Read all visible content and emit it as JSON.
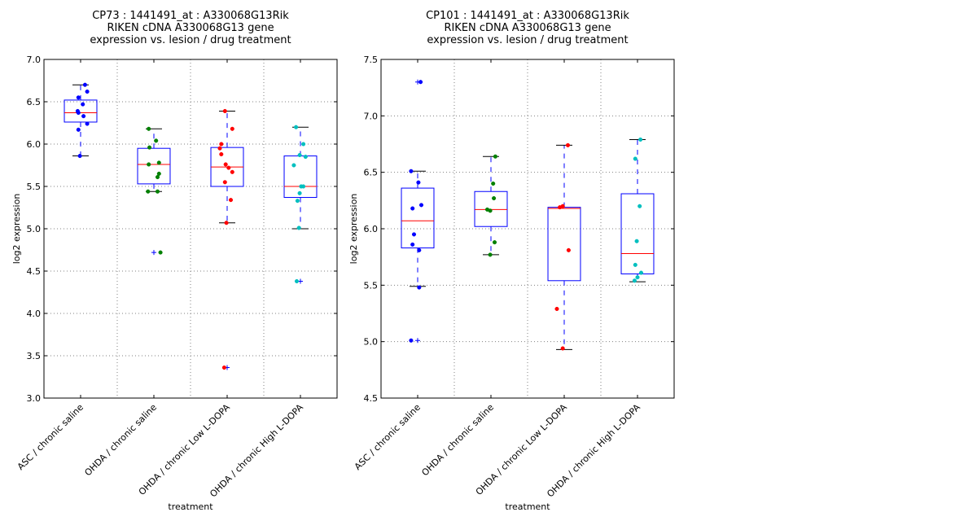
{
  "chart_data": [
    {
      "type": "box",
      "title": [
        "CP73 : 1441491_at : A330068G13Rik",
        "RIKEN cDNA A330068G13 gene",
        "expression vs. lesion / drug treatment"
      ],
      "xlabel": "treatment",
      "ylabel": "log2 expression",
      "ylim": [
        3.0,
        7.0
      ],
      "yticks": [
        "3.0",
        "3.5",
        "4.0",
        "4.5",
        "5.0",
        "5.5",
        "6.0",
        "6.5",
        "7.0"
      ],
      "grid": true,
      "categories": [
        "ASC / chronic saline",
        "OHDA / chronic saline",
        "OHDA / chronic Low L-DOPA",
        "OHDA / chronic High L-DOPA"
      ],
      "colors": [
        "#0000ff",
        "#008000",
        "#ff0000",
        "#00bfbf"
      ],
      "boxes": [
        {
          "q1": 6.26,
          "median": 6.37,
          "q3": 6.52,
          "whisker_low": 5.86,
          "whisker_high": 6.7,
          "outliers": []
        },
        {
          "q1": 5.53,
          "median": 5.76,
          "q3": 5.95,
          "whisker_low": 5.44,
          "whisker_high": 6.18,
          "outliers": [
            4.72
          ]
        },
        {
          "q1": 5.5,
          "median": 5.73,
          "q3": 5.96,
          "whisker_low": 5.07,
          "whisker_high": 6.39,
          "outliers": [
            3.36
          ]
        },
        {
          "q1": 5.37,
          "median": 5.5,
          "q3": 5.86,
          "whisker_low": 5.0,
          "whisker_high": 6.2,
          "outliers": [
            4.38
          ]
        }
      ],
      "points": [
        [
          {
            "v": 6.7,
            "j": 0.06
          },
          {
            "v": 6.62,
            "j": 0.09
          },
          {
            "v": 6.55,
            "j": -0.03
          },
          {
            "v": 6.47,
            "j": 0.03
          },
          {
            "v": 6.39,
            "j": -0.04
          },
          {
            "v": 6.37,
            "j": -0.03
          },
          {
            "v": 6.33,
            "j": 0.04
          },
          {
            "v": 6.24,
            "j": 0.09
          },
          {
            "v": 6.17,
            "j": -0.03
          },
          {
            "v": 5.86,
            "j": -0.01
          }
        ],
        [
          {
            "v": 6.18,
            "j": -0.07
          },
          {
            "v": 6.04,
            "j": 0.03
          },
          {
            "v": 5.96,
            "j": -0.06
          },
          {
            "v": 5.78,
            "j": 0.07
          },
          {
            "v": 5.76,
            "j": -0.07
          },
          {
            "v": 5.65,
            "j": 0.07
          },
          {
            "v": 5.61,
            "j": 0.05
          },
          {
            "v": 5.44,
            "j": -0.08
          },
          {
            "v": 5.44,
            "j": 0.05
          },
          {
            "v": 4.72,
            "j": 0.09
          }
        ],
        [
          {
            "v": 6.39,
            "j": -0.03
          },
          {
            "v": 6.18,
            "j": 0.07
          },
          {
            "v": 6.0,
            "j": -0.08
          },
          {
            "v": 5.95,
            "j": -0.1
          },
          {
            "v": 5.88,
            "j": -0.08
          },
          {
            "v": 5.76,
            "j": -0.02
          },
          {
            "v": 5.72,
            "j": 0.02
          },
          {
            "v": 5.67,
            "j": 0.07
          },
          {
            "v": 5.55,
            "j": -0.03
          },
          {
            "v": 5.34,
            "j": 0.05
          },
          {
            "v": 5.07,
            "j": -0.01
          },
          {
            "v": 3.36,
            "j": -0.04
          }
        ],
        [
          {
            "v": 6.2,
            "j": -0.06
          },
          {
            "v": 6.0,
            "j": 0.04
          },
          {
            "v": 5.87,
            "j": -0.01
          },
          {
            "v": 5.85,
            "j": 0.07
          },
          {
            "v": 5.75,
            "j": -0.09
          },
          {
            "v": 5.5,
            "j": 0.01
          },
          {
            "v": 5.5,
            "j": 0.04
          },
          {
            "v": 5.42,
            "j": -0.01
          },
          {
            "v": 5.33,
            "j": -0.04
          },
          {
            "v": 5.01,
            "j": -0.02
          },
          {
            "v": 4.38,
            "j": -0.05
          }
        ]
      ]
    },
    {
      "type": "box",
      "title": [
        "CP101 : 1441491_at : A330068G13Rik",
        "RIKEN cDNA A330068G13 gene",
        "expression vs. lesion / drug treatment"
      ],
      "xlabel": "treatment",
      "ylabel": "log2 expression",
      "ylim": [
        4.5,
        7.5
      ],
      "yticks": [
        "4.5",
        "5.0",
        "5.5",
        "6.0",
        "6.5",
        "7.0",
        "7.5"
      ],
      "grid": true,
      "categories": [
        "ASC / chronic saline",
        "OHDA / chronic saline",
        "OHDA / chronic Low L-DOPA",
        "OHDA / chronic High L-DOPA"
      ],
      "colors": [
        "#0000ff",
        "#008000",
        "#ff0000",
        "#00bfbf"
      ],
      "boxes": [
        {
          "q1": 5.83,
          "median": 6.07,
          "q3": 6.36,
          "whisker_low": 5.49,
          "whisker_high": 6.51,
          "outliers": [
            7.3,
            5.01
          ]
        },
        {
          "q1": 6.02,
          "median": 6.17,
          "q3": 6.33,
          "whisker_low": 5.77,
          "whisker_high": 6.64,
          "outliers": []
        },
        {
          "q1": 5.54,
          "median": 6.18,
          "q3": 6.19,
          "whisker_low": 4.93,
          "whisker_high": 6.74,
          "outliers": []
        },
        {
          "q1": 5.6,
          "median": 5.78,
          "q3": 6.31,
          "whisker_low": 5.53,
          "whisker_high": 6.79,
          "outliers": []
        }
      ],
      "points": [
        [
          {
            "v": 7.3,
            "j": 0.04
          },
          {
            "v": 6.51,
            "j": -0.09
          },
          {
            "v": 6.41,
            "j": 0.01
          },
          {
            "v": 6.21,
            "j": 0.05
          },
          {
            "v": 6.18,
            "j": -0.07
          },
          {
            "v": 5.95,
            "j": -0.05
          },
          {
            "v": 5.86,
            "j": -0.07
          },
          {
            "v": 5.81,
            "j": 0.02
          },
          {
            "v": 5.48,
            "j": 0.02
          },
          {
            "v": 5.01,
            "j": -0.09
          }
        ],
        [
          {
            "v": 6.64,
            "j": 0.06
          },
          {
            "v": 6.4,
            "j": 0.03
          },
          {
            "v": 6.27,
            "j": 0.04
          },
          {
            "v": 6.17,
            "j": -0.05
          },
          {
            "v": 6.16,
            "j": -0.01
          },
          {
            "v": 5.88,
            "j": 0.05
          },
          {
            "v": 5.77,
            "j": -0.01
          }
        ],
        [
          {
            "v": 6.74,
            "j": 0.05
          },
          {
            "v": 6.2,
            "j": -0.02
          },
          {
            "v": 6.19,
            "j": -0.06
          },
          {
            "v": 5.81,
            "j": 0.06
          },
          {
            "v": 5.29,
            "j": -0.1
          },
          {
            "v": 4.94,
            "j": -0.02
          }
        ],
        [
          {
            "v": 6.79,
            "j": 0.04
          },
          {
            "v": 6.62,
            "j": -0.03
          },
          {
            "v": 6.2,
            "j": 0.03
          },
          {
            "v": 5.89,
            "j": -0.01
          },
          {
            "v": 5.68,
            "j": -0.03
          },
          {
            "v": 5.61,
            "j": 0.05
          },
          {
            "v": 5.57,
            "j": 0.0
          },
          {
            "v": 5.54,
            "j": -0.04
          }
        ]
      ]
    }
  ]
}
